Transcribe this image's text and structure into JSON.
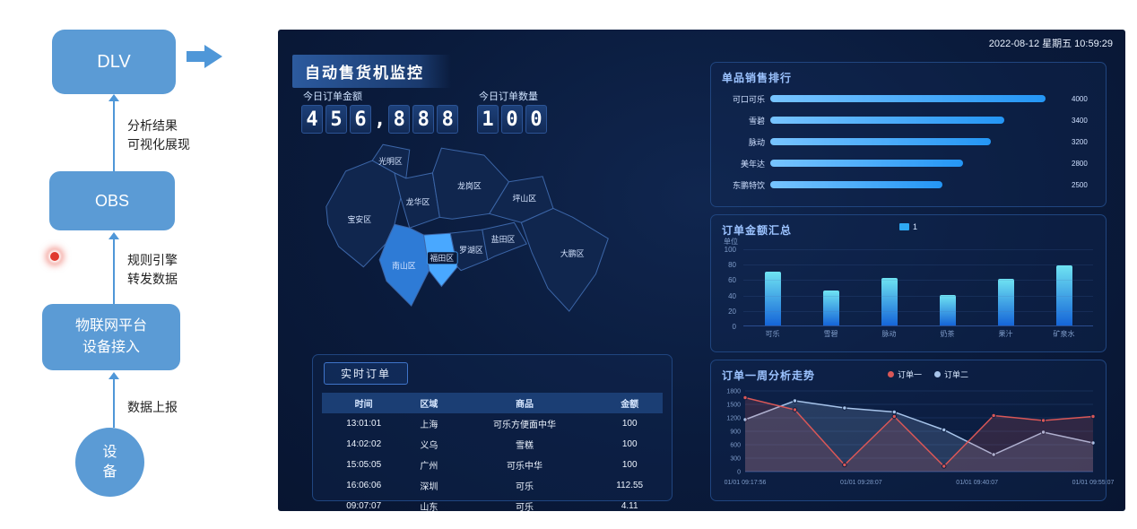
{
  "flowchart": {
    "nodes": {
      "dlv": "DLV",
      "obs": "OBS",
      "iot": [
        "物联网平台",
        "设备接入"
      ],
      "device": [
        "设",
        "备"
      ]
    },
    "labels": {
      "analysis": [
        "分析结果",
        "可视化展现"
      ],
      "rule": [
        "规则引擎",
        "转发数据"
      ],
      "report": "数据上报"
    }
  },
  "dashboard": {
    "datetime": "2022-08-12 星期五 10:59:29",
    "title": "自动售货机监控",
    "kpi": [
      {
        "label": "今日订单金额",
        "value": "456,888"
      },
      {
        "label": "今日订单数量",
        "value": "100"
      }
    ],
    "map": {
      "districts": [
        {
          "name": "宝安区",
          "highlight": false
        },
        {
          "name": "光明区",
          "highlight": false
        },
        {
          "name": "龙华区",
          "highlight": false
        },
        {
          "name": "龙岗区",
          "highlight": false
        },
        {
          "name": "坪山区",
          "highlight": false
        },
        {
          "name": "大鹏区",
          "highlight": false
        },
        {
          "name": "南山区",
          "highlight": true
        },
        {
          "name": "福田区",
          "highlight": true
        },
        {
          "name": "罗湖区",
          "highlight": false
        },
        {
          "name": "盐田区",
          "highlight": false
        }
      ]
    },
    "realtime_orders": {
      "title": "实时订单",
      "columns": [
        "时间",
        "区域",
        "商品",
        "金额"
      ],
      "rows": [
        [
          "13:01:01",
          "上海",
          "可乐方便面中华",
          "100"
        ],
        [
          "14:02:02",
          "义乌",
          "雪糕",
          "100"
        ],
        [
          "15:05:05",
          "广州",
          "可乐中华",
          "100"
        ],
        [
          "16:06:06",
          "深圳",
          "可乐",
          "112.55"
        ],
        [
          "09:07:07",
          "山东",
          "可乐",
          "4.11"
        ]
      ]
    }
  },
  "chart_data": [
    {
      "id": "product_rank",
      "type": "bar",
      "orientation": "horizontal",
      "title": "单品销售排行",
      "categories": [
        "可口可乐",
        "雪碧",
        "脉动",
        "美年达",
        "东鹏特饮"
      ],
      "values": [
        4000,
        3400,
        3200,
        2800,
        2500
      ],
      "xlim": [
        0,
        4300
      ],
      "grid": false,
      "legend_position": "none"
    },
    {
      "id": "order_amount",
      "type": "bar",
      "title": "订单金额汇总",
      "legend": [
        "1"
      ],
      "legend_position": "top",
      "ylabel": "单位",
      "categories": [
        "可乐",
        "雪碧",
        "脉动",
        "奶茶",
        "果汁",
        "矿泉水"
      ],
      "values": [
        70,
        45,
        62,
        40,
        60,
        78
      ],
      "ylim": [
        0,
        100
      ],
      "yticks": [
        0,
        20,
        40,
        60,
        80,
        100
      ],
      "grid": true
    },
    {
      "id": "week_trend",
      "type": "line",
      "title": "订单一周分析走势",
      "legend_position": "top",
      "x_ticks": [
        "01/01 09:17:56",
        "01/01 09:28:07",
        "01/01 09:40:07",
        "01/01 09:55:07"
      ],
      "ylim": [
        0,
        1800
      ],
      "yticks": [
        0,
        300,
        600,
        900,
        1200,
        1500,
        1800
      ],
      "grid": true,
      "series": [
        {
          "name": "订单一",
          "color": "#d95757",
          "values": [
            1650,
            1380,
            150,
            1230,
            120,
            1250,
            1140,
            1230
          ]
        },
        {
          "name": "订单二",
          "color": "#a7c4ea",
          "values": [
            1160,
            1580,
            1420,
            1330,
            930,
            380,
            880,
            640
          ]
        }
      ]
    }
  ]
}
